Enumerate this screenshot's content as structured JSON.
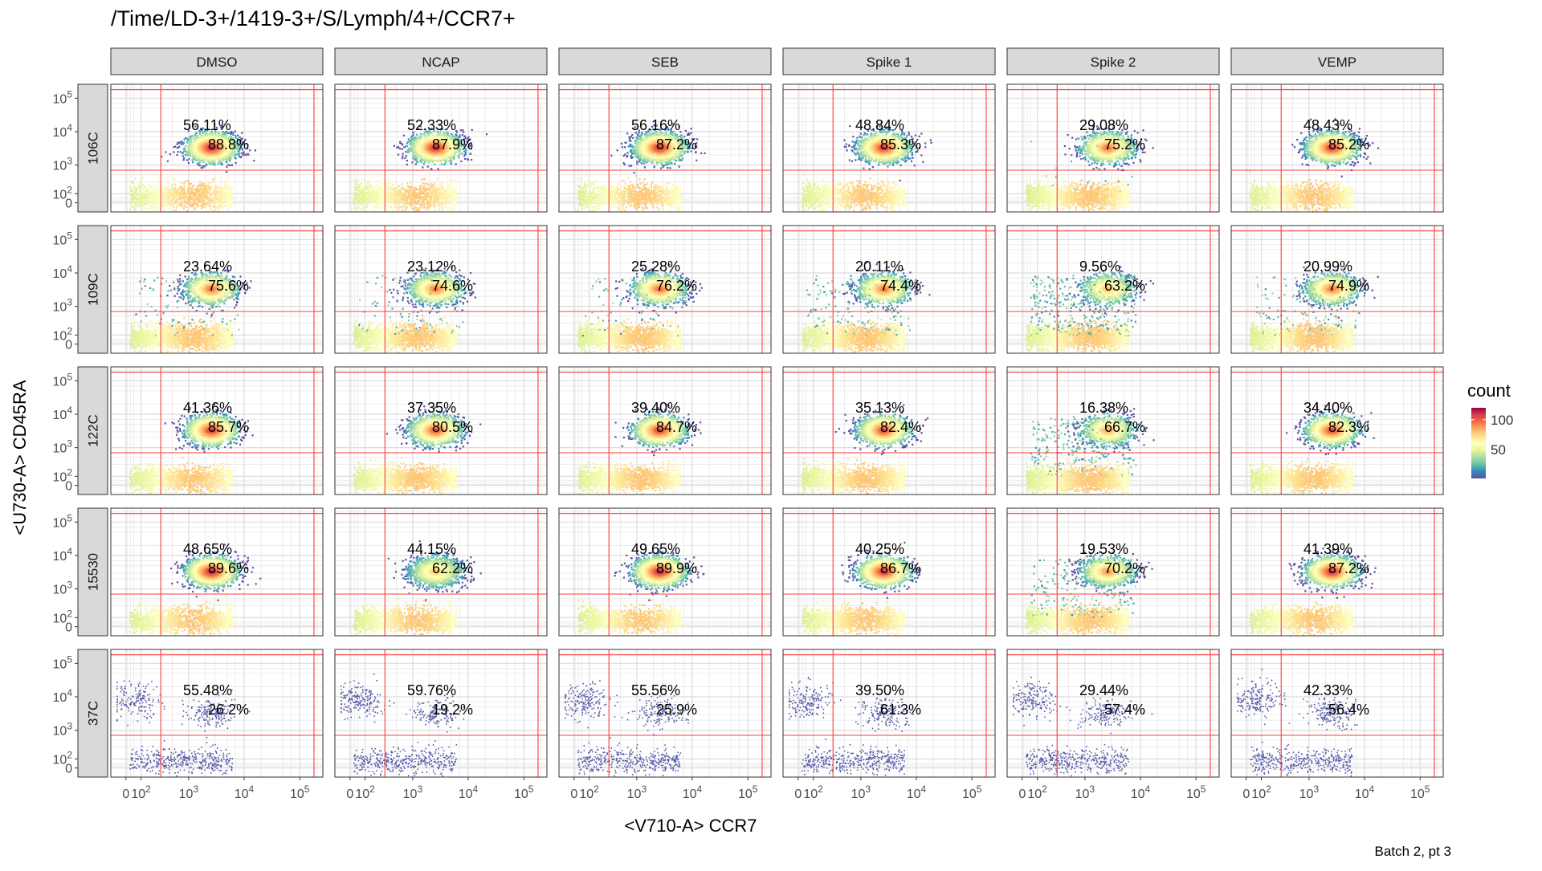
{
  "chart_data": {
    "type": "heatmap",
    "title": "/Time/LD-3+/1419-3+/S/Lymph/4+/CCR7+",
    "xlabel": "<V710-A> CCR7",
    "ylabel": "<U730-A> CD45RA",
    "caption": "Batch 2, pt 3",
    "columns": [
      "DMSO",
      "NCAP",
      "SEB",
      "Spike 1",
      "Spike 2",
      "VEMP"
    ],
    "rows": [
      "106C",
      "109C",
      "122C",
      "15530",
      "37C"
    ],
    "x_ticks": [
      "0",
      "10",
      "10",
      "10",
      "10"
    ],
    "x_tick_exps": [
      "",
      "2",
      "3",
      "4",
      "5"
    ],
    "y_ticks": [
      "0",
      "10",
      "10",
      "10",
      "10"
    ],
    "y_tick_exps": [
      "",
      "2",
      "3",
      "4",
      "5"
    ],
    "x_tick_values": [
      0,
      100,
      1000,
      10000,
      100000
    ],
    "y_tick_values": [
      0,
      100,
      1000,
      10000,
      100000
    ],
    "gate_x": 300,
    "gate_x_max": 180000,
    "gate_y": 700,
    "gate_y_max": 180000,
    "legend": {
      "title": "count",
      "labels": [
        "100",
        "50"
      ],
      "label_values": [
        100,
        50
      ],
      "min": 1,
      "max": 120,
      "position": "right"
    },
    "colors": [
      "#5e4fa2",
      "#3288bd",
      "#66c2a5",
      "#abdda4",
      "#e6f598",
      "#ffffbf",
      "#fee08b",
      "#fdae61",
      "#f46d43",
      "#d53e4f",
      "#9e0142"
    ],
    "gate_color": "#ff3b3b",
    "pct_upper": [
      [
        "56.11%",
        "52.33%",
        "56.16%",
        "48.84%",
        "29.08%",
        "48.43%"
      ],
      [
        "23.64%",
        "23.12%",
        "25.28%",
        "20.11%",
        "9.56%",
        "20.99%"
      ],
      [
        "41.36%",
        "37.35%",
        "39.40%",
        "35.13%",
        "16.38%",
        "34.40%"
      ],
      [
        "48.65%",
        "44.15%",
        "49.65%",
        "40.25%",
        "19.53%",
        "41.39%"
      ],
      [
        "55.48%",
        "59.76%",
        "55.56%",
        "39.50%",
        "29.44%",
        "42.33%"
      ]
    ],
    "pct_lower": [
      [
        "88.8%",
        "87.9%",
        "87.2%",
        "85.3%",
        "75.2%",
        "85.2%"
      ],
      [
        "75.6%",
        "74.6%",
        "76.2%",
        "74.4%",
        "63.2%",
        "74.9%"
      ],
      [
        "85.7%",
        "80.5%",
        "84.7%",
        "82.4%",
        "66.7%",
        "82.3%"
      ],
      [
        "89.6%",
        "62.2%",
        "89.9%",
        "86.7%",
        "70.2%",
        "87.2%"
      ],
      [
        "26.2%",
        "19.2%",
        "25.9%",
        "61.3%",
        "57.4%",
        "56.4%"
      ]
    ]
  }
}
